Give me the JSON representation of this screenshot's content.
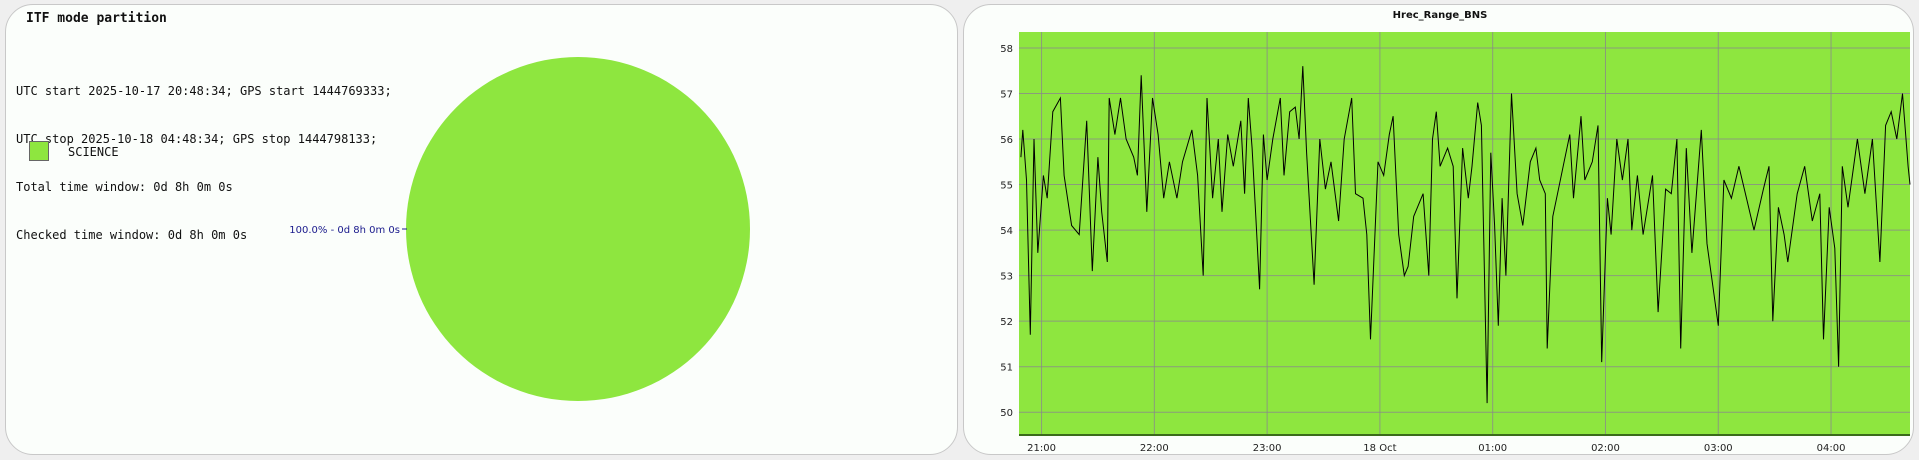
{
  "left_panel": {
    "title": "ITF mode partition",
    "info_lines": [
      "UTC start 2025-10-17 20:48:34; GPS start 1444769333;",
      "UTC stop 2025-10-18 04:48:34; GPS stop 1444798133;",
      "Total time window: 0d 8h 0m 0s",
      "Checked time window: 0d 8h 0m 0s"
    ],
    "legend": [
      {
        "label": "SCIENCE",
        "color": "#8ee63f"
      }
    ],
    "pie": {
      "type": "pie",
      "slices": [
        {
          "label": "SCIENCE",
          "value": 100.0,
          "color": "#8ee63f"
        }
      ],
      "slice_label": "100.0% - 0d 8h 0m 0s",
      "label_color": "#1a1a8c"
    }
  },
  "chart_data": {
    "type": "line",
    "title": "Hrec_Range_BNS",
    "xlabel": "",
    "ylabel": "",
    "background_color": "#8ee63f",
    "line_color": "#000000",
    "grid": true,
    "xlim": [
      "20:48",
      "04:42"
    ],
    "ylim": [
      49.5,
      58.35
    ],
    "yticks": [
      50,
      51,
      52,
      53,
      54,
      55,
      56,
      57,
      58
    ],
    "xticks": [
      {
        "t": "21:00",
        "label": "21:00"
      },
      {
        "t": "22:00",
        "label": "22:00"
      },
      {
        "t": "23:00",
        "label": "23:00"
      },
      {
        "t": "00:00",
        "label": "18 Oct"
      },
      {
        "t": "01:00",
        "label": "01:00"
      },
      {
        "t": "02:00",
        "label": "02:00"
      },
      {
        "t": "03:00",
        "label": "03:00"
      },
      {
        "t": "04:00",
        "label": "04:00"
      }
    ],
    "series": [
      {
        "x": [
          "20:49",
          "20:50",
          "20:52",
          "20:54",
          "20:56",
          "20:58",
          "21:01",
          "21:03",
          "21:06",
          "21:10",
          "21:12",
          "21:16",
          "21:20",
          "21:24",
          "21:27",
          "21:30",
          "21:32",
          "21:35",
          "21:36",
          "21:39",
          "21:42",
          "21:45",
          "21:49",
          "21:51",
          "21:53",
          "21:56",
          "21:59",
          "22:02",
          "22:05",
          "22:08",
          "22:12",
          "22:15",
          "22:20",
          "22:23",
          "22:26",
          "22:28",
          "22:31",
          "22:34",
          "22:36",
          "22:39",
          "22:42",
          "22:46",
          "22:48",
          "22:50",
          "22:52",
          "22:54",
          "22:56",
          "22:58",
          "23:00",
          "23:03",
          "23:07",
          "23:09",
          "23:12",
          "23:15",
          "23:17",
          "23:19",
          "23:21",
          "23:25",
          "23:28",
          "23:31",
          "23:34",
          "23:38",
          "23:41",
          "23:45",
          "23:47",
          "23:51",
          "23:53",
          "23:55",
          "23:59",
          "00:02",
          "00:05",
          "00:07",
          "00:10",
          "00:13",
          "00:15",
          "00:18",
          "00:23",
          "00:26",
          "00:28",
          "00:30",
          "00:32",
          "00:36",
          "00:39",
          "00:41",
          "00:44",
          "00:47",
          "00:49",
          "00:52",
          "00:54",
          "00:57",
          "00:59",
          "01:01",
          "01:03",
          "01:05",
          "01:07",
          "01:10",
          "01:13",
          "01:16",
          "01:20",
          "01:23",
          "01:25",
          "01:28",
          "01:29",
          "01:32",
          "01:34",
          "01:38",
          "01:41",
          "01:43",
          "01:47",
          "01:49",
          "01:53",
          "01:56",
          "01:58",
          "02:01",
          "02:03",
          "02:06",
          "02:09",
          "02:12",
          "02:14",
          "02:17",
          "02:20",
          "02:25",
          "02:28",
          "02:32",
          "02:35",
          "02:38",
          "02:40",
          "02:43",
          "02:46",
          "02:51",
          "02:54",
          "03:00",
          "03:03",
          "03:07",
          "03:11",
          "03:15",
          "03:19",
          "03:24",
          "03:27",
          "03:29",
          "03:32",
          "03:35",
          "03:37",
          "03:42",
          "03:46",
          "03:50",
          "03:54",
          "03:56",
          "03:59",
          "04:02",
          "04:04",
          "04:06",
          "04:09",
          "04:14",
          "04:18",
          "04:22",
          "04:26",
          "04:29",
          "04:32",
          "04:35",
          "04:38",
          "04:41",
          "04:42"
        ],
        "y": [
          55.6,
          56.2,
          55.1,
          51.7,
          56.0,
          53.5,
          55.2,
          54.7,
          56.6,
          56.9,
          55.2,
          54.1,
          53.9,
          56.4,
          53.1,
          55.6,
          54.4,
          53.3,
          56.9,
          56.1,
          56.9,
          56.0,
          55.6,
          55.2,
          57.4,
          54.4,
          56.9,
          56.1,
          54.7,
          55.5,
          54.7,
          55.5,
          56.2,
          55.2,
          53.0,
          56.9,
          54.7,
          56.0,
          54.4,
          56.1,
          55.4,
          56.4,
          54.8,
          56.9,
          55.8,
          54.3,
          52.7,
          56.1,
          55.1,
          56.0,
          56.9,
          55.2,
          56.6,
          56.7,
          56.0,
          57.6,
          55.7,
          52.8,
          56.0,
          54.9,
          55.5,
          54.2,
          56.0,
          56.9,
          54.8,
          54.7,
          53.9,
          51.6,
          55.5,
          55.2,
          56.1,
          56.5,
          53.9,
          53.0,
          53.2,
          54.3,
          54.8,
          53.0,
          56.0,
          56.6,
          55.4,
          55.8,
          55.4,
          52.5,
          55.8,
          54.7,
          55.4,
          56.8,
          56.3,
          50.2,
          55.7,
          54.1,
          51.9,
          54.7,
          53.0,
          57.0,
          54.8,
          54.1,
          55.5,
          55.8,
          55.1,
          54.8,
          51.4,
          54.3,
          54.7,
          55.5,
          56.1,
          54.7,
          56.5,
          55.1,
          55.5,
          56.3,
          51.1,
          54.7,
          53.9,
          56.0,
          55.1,
          56.0,
          54.0,
          55.2,
          53.9,
          55.2,
          52.2,
          54.9,
          54.8,
          56.0,
          51.4,
          55.8,
          53.5,
          56.2,
          53.7,
          51.9,
          55.1,
          54.7,
          55.4,
          54.7,
          54.0,
          54.9,
          55.4,
          52.0,
          54.5,
          53.9,
          53.3,
          54.8,
          55.4,
          54.2,
          54.8,
          51.6,
          54.5,
          53.6,
          51.0,
          55.4,
          54.5,
          56.0,
          54.8,
          56.0,
          53.3,
          56.3,
          56.6,
          56.0,
          57.0,
          55.4,
          55.0
        ]
      }
    ]
  }
}
